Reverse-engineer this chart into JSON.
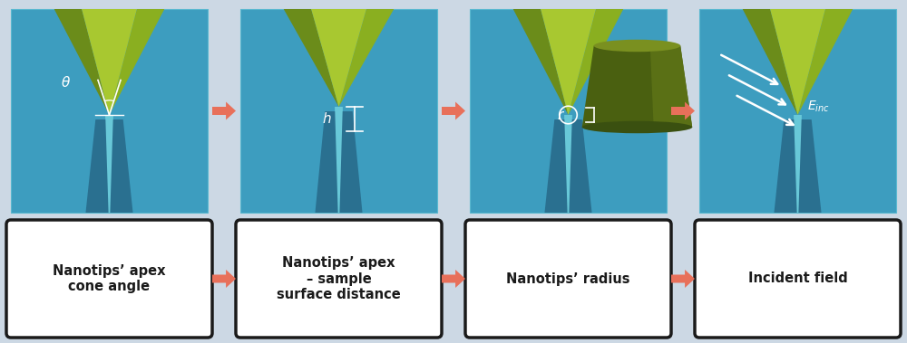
{
  "bg_color": "#ccd8e4",
  "panel_bg": "#3d9dbf",
  "tip_green_dark": "#6b8c1a",
  "tip_green_mid": "#8aaf20",
  "tip_green_light": "#a8c830",
  "needle_color": "#4ab0c8",
  "shadow_dark": "#2a7090",
  "arrow_color": "#e8705a",
  "box_bg": "#ffffff",
  "box_border": "#1a1a1a",
  "label_color": "#1a1a1a",
  "white": "#ffffff",
  "drum_dark": "#4a6010",
  "drum_mid": "#5a7015",
  "drum_light": "#7a9020",
  "labels": [
    "Nanotips’ apex\ncone angle",
    "Nanotips’ apex\n– sample\nsurface distance",
    "Nanotips’ radius",
    "Incident field"
  ],
  "fig_width": 10.0,
  "fig_height": 3.79
}
